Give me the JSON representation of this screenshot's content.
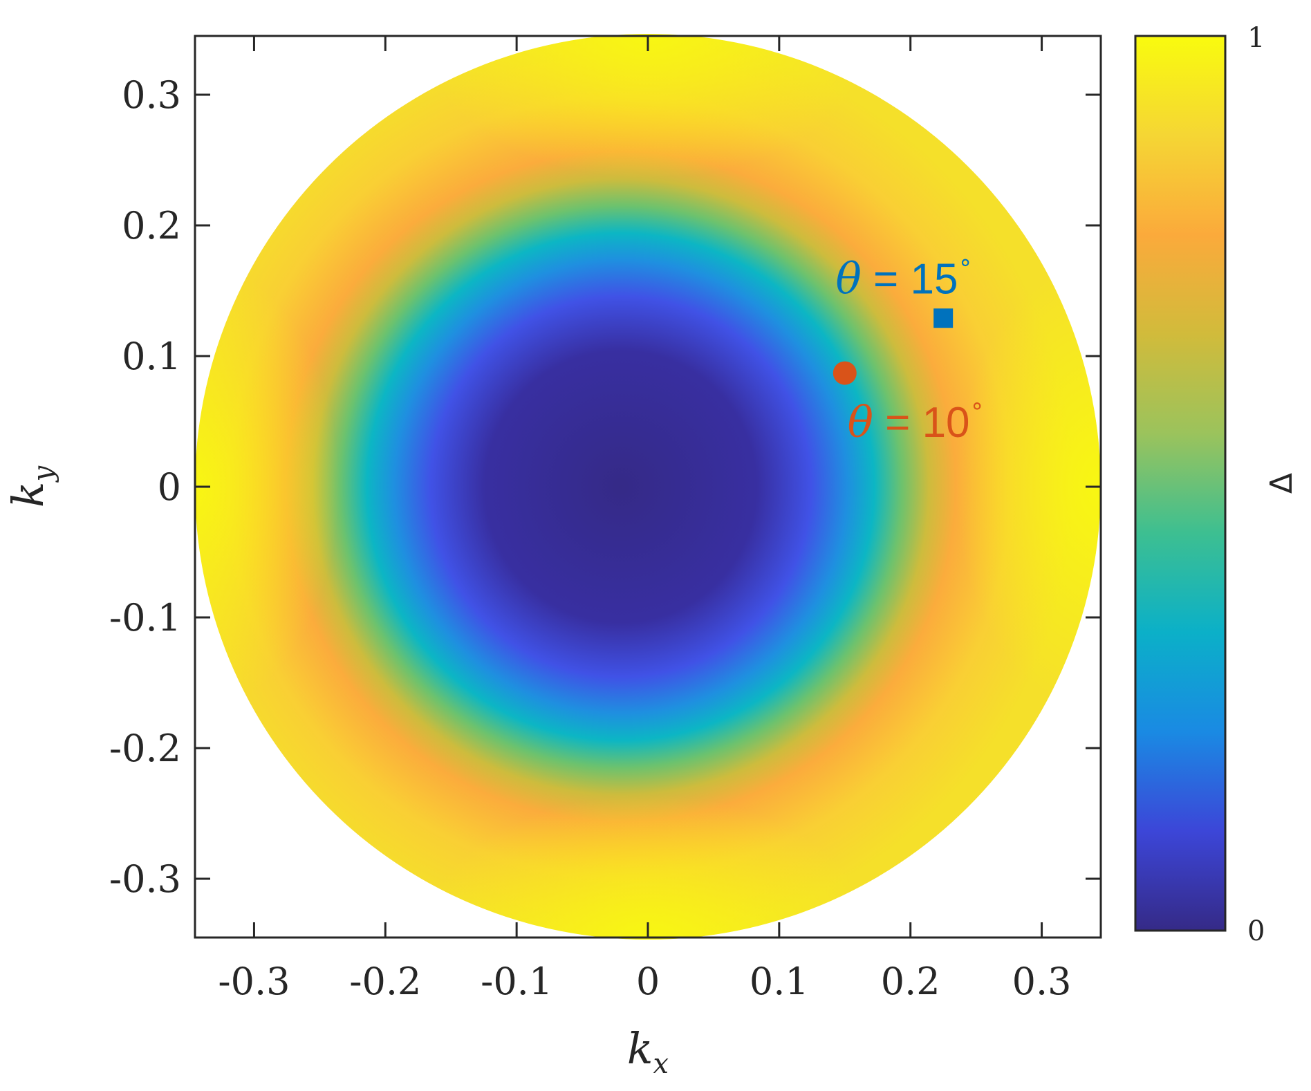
{
  "chart_data": {
    "type": "heatmap",
    "title": "",
    "xlabel": "k",
    "xlabel_sub": "x",
    "ylabel": "k",
    "ylabel_sub": "y",
    "xlim": [
      -0.345,
      0.345
    ],
    "ylim": [
      -0.345,
      0.345
    ],
    "x_ticks": [
      -0.3,
      -0.2,
      -0.1,
      0,
      0.1,
      0.2,
      0.3
    ],
    "y_ticks": [
      -0.3,
      -0.2,
      -0.1,
      0,
      0.1,
      0.2,
      0.3
    ],
    "x_tick_labels": [
      "-0.3",
      "-0.2",
      "-0.1",
      "0",
      "0.1",
      "0.2",
      "0.3"
    ],
    "y_tick_labels": [
      "-0.3",
      "-0.2",
      "-0.1",
      "0",
      "0.1",
      "0.2",
      "0.3"
    ],
    "domain_radius": 0.345,
    "field": "Δ(kx, ky): ≈0 in a rounded-diamond core (|k| ≲ 0.13), rising through a ring (|k| ≈ 0.15–0.2) to ≈0.85 and toward 1 near the disk edge along the axes",
    "colorbar": {
      "label": "Δ",
      "min": 0,
      "max": 1,
      "tick_labels": [
        "0",
        "1"
      ],
      "colormap": "parula",
      "colors": [
        "#352a87",
        "#3c46d8",
        "#1a8ae3",
        "#0bb0c8",
        "#3dbf91",
        "#9bc35c",
        "#d1bb3b",
        "#fbaa3b",
        "#f5d634",
        "#f9fb0e"
      ]
    },
    "markers": [
      {
        "name": "θ = 10°",
        "shape": "circle",
        "x": 0.15,
        "y": 0.087,
        "color": "#d95319"
      },
      {
        "name": "θ = 15°",
        "shape": "square",
        "x": 0.225,
        "y": 0.129,
        "color": "#0072bd"
      }
    ],
    "annotations": [
      {
        "theta": "θ",
        "rest": " = 15",
        "degree": "∘",
        "color": "#0072bd",
        "x": 0.143,
        "y": 0.148
      },
      {
        "theta": "θ",
        "rest": " = 10",
        "degree": "∘",
        "color": "#d95319",
        "x": 0.152,
        "y": 0.038
      }
    ],
    "grid": false,
    "legend": "none"
  }
}
